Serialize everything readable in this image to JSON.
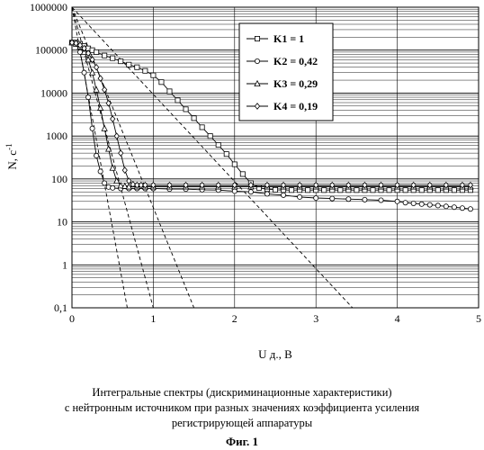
{
  "chart_data": {
    "type": "line",
    "y_scale": "log",
    "xlabel": "U д., В",
    "ylabel_base": "N, с",
    "ylabel_exp": "-1",
    "xlim": [
      0,
      5
    ],
    "ylim": [
      0.1,
      1000000
    ],
    "x_ticks": [
      "0",
      "1",
      "2",
      "3",
      "4",
      "5"
    ],
    "y_ticks": [
      "0,1",
      "1",
      "10",
      "100",
      "1000",
      "10000",
      "100000",
      "1000000"
    ],
    "grid": true,
    "legend_position": "top-right",
    "series": [
      {
        "name": "K1 = 1",
        "marker": "square",
        "x": [
          0.0,
          0.05,
          0.1,
          0.15,
          0.2,
          0.25,
          0.3,
          0.4,
          0.5,
          0.6,
          0.7,
          0.8,
          0.9,
          1.0,
          1.1,
          1.2,
          1.3,
          1.4,
          1.5,
          1.6,
          1.7,
          1.8,
          1.9,
          2.0,
          2.1,
          2.2,
          2.3,
          2.4,
          2.5,
          2.6,
          2.7,
          2.8,
          2.9,
          3.0,
          3.1,
          3.2,
          3.3,
          3.4,
          3.5,
          3.6,
          3.7,
          3.8,
          3.9,
          4.0,
          4.1,
          4.2,
          4.3,
          4.4,
          4.5,
          4.6,
          4.7,
          4.8,
          4.9
        ],
        "y": [
          150000,
          150000,
          140000,
          125000,
          110000,
          100000,
          90000,
          75000,
          65000,
          55000,
          46000,
          40000,
          33000,
          26000,
          18000,
          11000,
          6800,
          4200,
          2600,
          1600,
          1000,
          620,
          380,
          220,
          130,
          80,
          62,
          58,
          56,
          55,
          55,
          55,
          55,
          55,
          55,
          55,
          55,
          55,
          55,
          55,
          55,
          55,
          55,
          55,
          55,
          55,
          55,
          55,
          55,
          55,
          55,
          55,
          55
        ]
      },
      {
        "name": "K2 = 0,42",
        "marker": "circle",
        "x": [
          0.0,
          0.05,
          0.1,
          0.15,
          0.2,
          0.25,
          0.3,
          0.35,
          0.4,
          0.45,
          0.5,
          0.6,
          0.7,
          0.8,
          0.9,
          1.0,
          1.2,
          1.4,
          1.6,
          1.8,
          2.0,
          2.2,
          2.4,
          2.6,
          2.8,
          3.0,
          3.2,
          3.4,
          3.6,
          3.8,
          4.0,
          4.1,
          4.2,
          4.3,
          4.4,
          4.5,
          4.6,
          4.7,
          4.8,
          4.9
        ],
        "y": [
          150000,
          140000,
          90000,
          30000,
          8000,
          1500,
          350,
          150,
          80,
          65,
          62,
          60,
          60,
          60,
          60,
          60,
          58,
          58,
          56,
          55,
          52,
          50,
          45,
          42,
          38,
          36,
          35,
          34,
          33,
          32,
          30,
          28,
          27,
          26,
          25,
          24,
          23,
          22,
          21,
          20
        ]
      },
      {
        "name": "K3 = 0,29",
        "marker": "triangle",
        "x": [
          0.0,
          0.05,
          0.1,
          0.15,
          0.2,
          0.25,
          0.3,
          0.35,
          0.4,
          0.45,
          0.5,
          0.55,
          0.6,
          0.65,
          0.7,
          0.8,
          0.9,
          1.0,
          1.2,
          1.4,
          1.6,
          1.8,
          2.0,
          2.2,
          2.4,
          2.6,
          2.8,
          3.0,
          3.2,
          3.4,
          3.6,
          3.8,
          4.0,
          4.2,
          4.4,
          4.6,
          4.8,
          4.9
        ],
        "y": [
          150000,
          140000,
          120000,
          90000,
          60000,
          30000,
          12000,
          4500,
          1500,
          500,
          180,
          90,
          70,
          68,
          66,
          66,
          66,
          66,
          66,
          66,
          66,
          66,
          66,
          66,
          66,
          66,
          66,
          66,
          66,
          66,
          66,
          66,
          66,
          66,
          66,
          66,
          66,
          66
        ]
      },
      {
        "name": "K4 = 0,19",
        "marker": "diamond",
        "x": [
          0.0,
          0.05,
          0.1,
          0.15,
          0.2,
          0.25,
          0.3,
          0.35,
          0.4,
          0.45,
          0.5,
          0.55,
          0.6,
          0.65,
          0.7,
          0.75,
          0.8,
          0.85,
          0.9,
          1.0,
          1.2,
          1.4,
          1.6,
          1.8,
          2.0,
          2.2,
          2.4,
          2.6,
          2.8,
          3.0,
          3.2,
          3.4,
          3.6,
          3.8,
          4.0,
          4.2,
          4.4,
          4.6,
          4.8,
          4.9
        ],
        "y": [
          150000,
          145000,
          130000,
          110000,
          85000,
          60000,
          40000,
          22000,
          12000,
          5800,
          2500,
          1000,
          400,
          160,
          90,
          75,
          72,
          72,
          72,
          72,
          72,
          72,
          72,
          72,
          72,
          72,
          72,
          72,
          72,
          72,
          72,
          72,
          72,
          72,
          72,
          72,
          72,
          72,
          72,
          72
        ]
      }
    ],
    "extrapolation_lines": [
      {
        "x": [
          0.0,
          3.45
        ],
        "y": [
          1000000,
          0.1
        ]
      },
      {
        "x": [
          0.0,
          1.5
        ],
        "y": [
          1000000,
          0.1
        ]
      },
      {
        "x": [
          0.0,
          1.0
        ],
        "y": [
          1000000,
          0.1
        ]
      },
      {
        "x": [
          0.0,
          0.68
        ],
        "y": [
          1000000,
          0.1
        ]
      }
    ]
  },
  "caption": {
    "lines": [
      "Интегральные спектры (дискриминационные характеристики)",
      "с нейтронным источником при разных значениях коэффициента усиления",
      "регистрирующей аппаратуры"
    ],
    "figure_label": "Фиг. 1"
  }
}
